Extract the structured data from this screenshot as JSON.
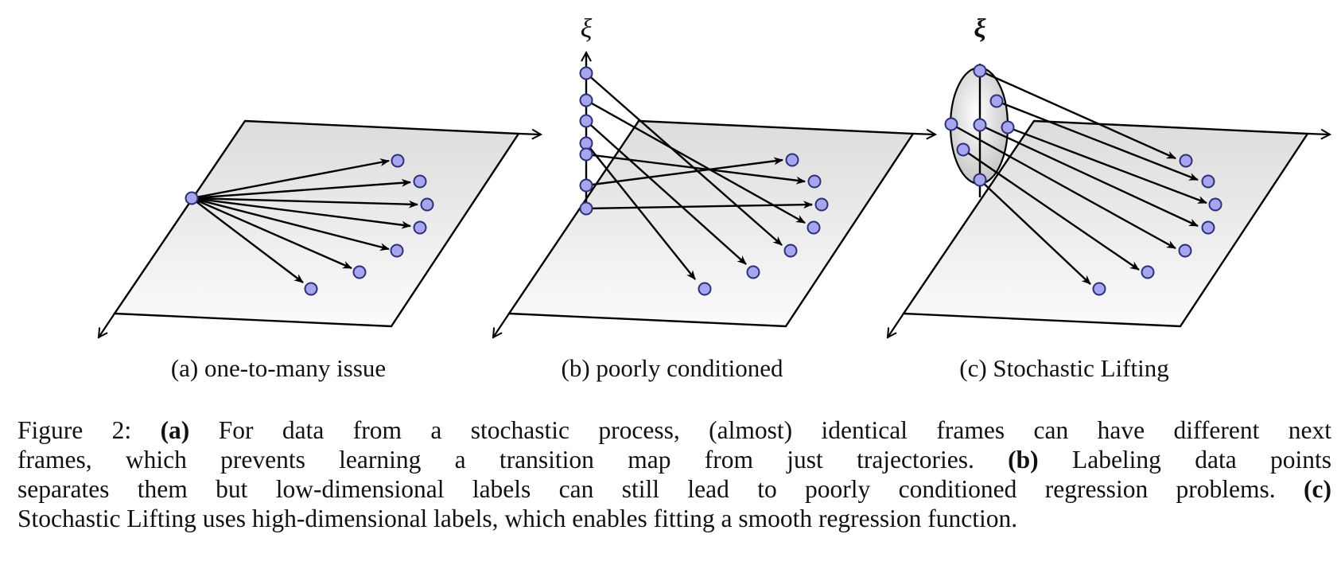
{
  "figure": {
    "panels": [
      {
        "id": "a",
        "subcaption": "(a) one-to-many issue",
        "axis_label": ""
      },
      {
        "id": "b",
        "subcaption": "(b) poorly conditioned",
        "axis_label": "ξ"
      },
      {
        "id": "c",
        "subcaption": "(c) Stochastic Lifting",
        "axis_label": "ξ"
      }
    ],
    "colors": {
      "point_fill": "#a6a6ee",
      "point_stroke": "#2e2e7a",
      "plane_top": "#e4e4e4",
      "plane_bottom": "#fafafa",
      "line": "#000000"
    }
  },
  "caption": {
    "line1_prefix": "Figure 2: ",
    "line1_bold_a": "(a)",
    "line1_rest": " For data from a stochastic process, (almost) identical frames can have different next",
    "line2_text": "frames, which prevents learning a transition map from just trajectories.  ",
    "line2_bold_b": "(b)",
    "line2_rest": " Labeling data points",
    "line3_text": "separates them but low-dimensional labels can still lead to poorly conditioned regression problems. ",
    "line3_bold_c": "(c)",
    "line4_text": "Stochastic Lifting uses high-dimensional labels, which enables fitting a smooth regression function."
  }
}
